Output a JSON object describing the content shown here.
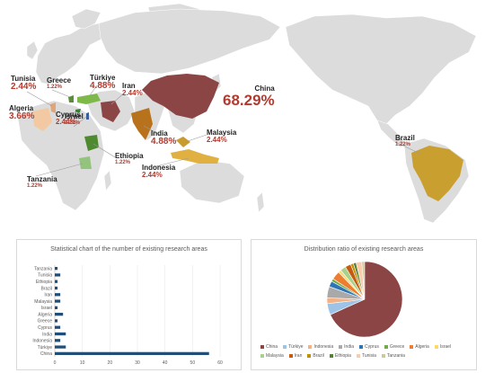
{
  "map": {
    "ocean_color": "#ffffff",
    "land_color": "#dcdcdc",
    "highlight_colors": {
      "China": "#8b4545",
      "Türkiye": "#7fb84a",
      "Iran": "#8b4545",
      "India": "#b9721c",
      "Algeria": "#f2c9a2",
      "Tunisia": "#e0a57a",
      "Greece": "#5a8f3a",
      "Cyprus": "#3a7a3a",
      "Israel": "#3a5f9a",
      "Malaysia": "#c99a2e",
      "Indonesia": "#e0b040",
      "Ethiopia": "#4e8a2f",
      "Tanzania": "#93c47d",
      "Brazil": "#c9a030"
    },
    "labels": [
      {
        "id": "tunisia",
        "name": "Tunisia",
        "pct": "2.44%"
      },
      {
        "id": "greece",
        "name": "Greece",
        "pct": "1.22%"
      },
      {
        "id": "turkiye",
        "name": "Türkiye",
        "pct": "4.88%"
      },
      {
        "id": "iran",
        "name": "Iran",
        "pct": "2.44%"
      },
      {
        "id": "china",
        "name": "China",
        "pct": "68.29%"
      },
      {
        "id": "algeria",
        "name": "Algeria",
        "pct": "3.66%"
      },
      {
        "id": "cyprus",
        "name": "Cyprus",
        "pct": "2.44%"
      },
      {
        "id": "israel",
        "name": "Israel",
        "pct": "1.22%"
      },
      {
        "id": "india",
        "name": "India",
        "pct": "4.88%"
      },
      {
        "id": "malaysia",
        "name": "Malaysia",
        "pct": "2.44%"
      },
      {
        "id": "ethiopia",
        "name": "Ethiopia",
        "pct": "1.22%"
      },
      {
        "id": "indonesia",
        "name": "Indonesia",
        "pct": "2.44%"
      },
      {
        "id": "tanzania",
        "name": "Tanzania",
        "pct": "1.22%"
      },
      {
        "id": "brazil",
        "name": "Brazil",
        "pct": "1.22%"
      }
    ]
  },
  "chart_data": [
    {
      "type": "bar",
      "orientation": "horizontal",
      "title": "Statistical chart of the number of existing research areas",
      "categories": [
        "China",
        "Türkiye",
        "Indonesia",
        "India",
        "Cyprus",
        "Greece",
        "Algeria",
        "Israel",
        "Malaysia",
        "Iran",
        "Brazil",
        "Ethiopia",
        "Tunisia",
        "Tanzania"
      ],
      "values": [
        56,
        4,
        2,
        4,
        2,
        1,
        3,
        1,
        2,
        2,
        1,
        1,
        2,
        1
      ],
      "xlim": [
        0,
        60
      ],
      "xticks": [
        0,
        10,
        20,
        30,
        40,
        50,
        60
      ],
      "bar_color": "#1f4e79",
      "grid": true
    },
    {
      "type": "pie",
      "title": "Distribution ratio of existing research areas",
      "labels": [
        "China",
        "Türkiye",
        "Indonesia",
        "India",
        "Cyprus",
        "Greece",
        "Algeria",
        "Israel",
        "Malaysia",
        "Iran",
        "Brazil",
        "Ethiopia",
        "Tunisia",
        "Tanzania"
      ],
      "values": [
        56,
        4,
        2,
        4,
        2,
        1,
        3,
        1,
        2,
        2,
        1,
        1,
        2,
        1
      ],
      "colors": [
        "#8b4545",
        "#9dc3e6",
        "#f4b183",
        "#a9a9a9",
        "#2e75b6",
        "#70ad47",
        "#ed7d31",
        "#ffd966",
        "#a9d18e",
        "#c55a11",
        "#bf9000",
        "#548235",
        "#f8cbad",
        "#c9c9a0"
      ],
      "legend": "bottom"
    }
  ]
}
